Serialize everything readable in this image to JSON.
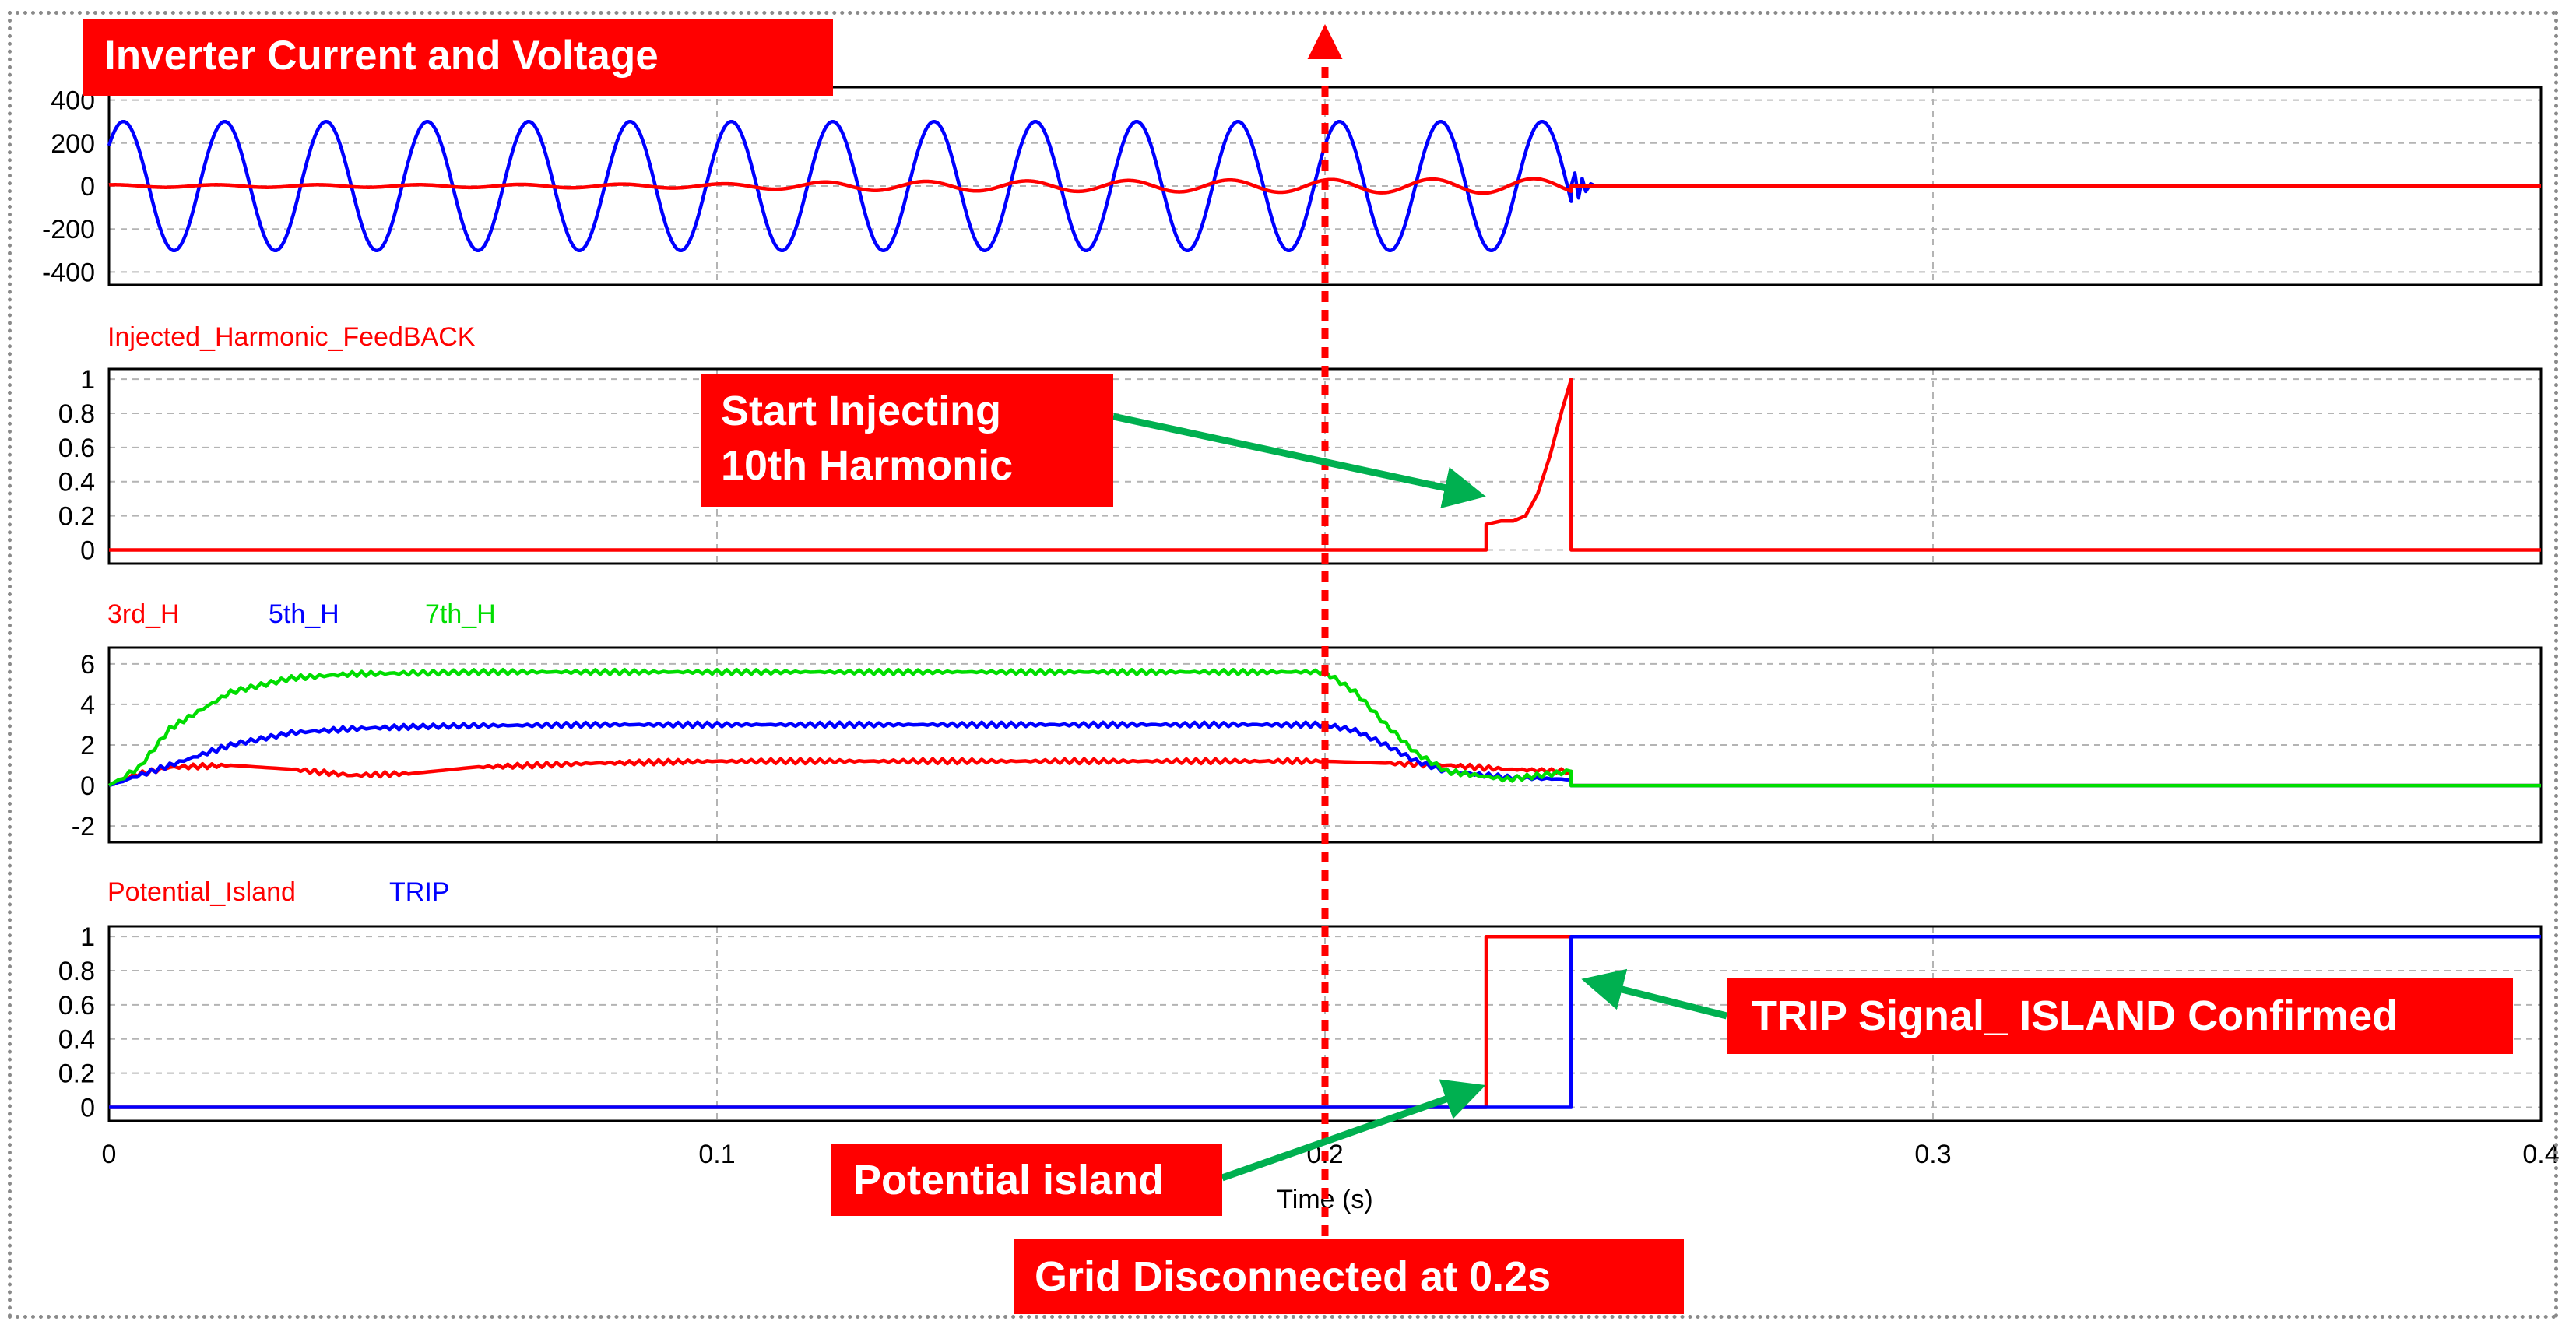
{
  "chart_data": [
    {
      "type": "line",
      "title": "Inverter Current and Voltage",
      "yticks": [
        "400",
        "200",
        "0",
        "-200",
        "-400"
      ],
      "ylim": [
        -460,
        460
      ],
      "xlim": [
        0,
        0.4
      ],
      "grid": true,
      "series": [
        {
          "description_color": "blue",
          "kind": "sine",
          "amplitude": 300,
          "frequency_hz": 60,
          "phase_offset_s": 0.0018,
          "end_t": 0.2405,
          "after_value": 0
        },
        {
          "description_color": "red",
          "kind": "sine-envelope",
          "envelope": [
            [
              0,
              6
            ],
            [
              0.05,
              6
            ],
            [
              0.1,
              10
            ],
            [
              0.12,
              20
            ],
            [
              0.2,
              30
            ],
            [
              0.24,
              35
            ]
          ],
          "frequency_hz": 60,
          "end_t": 0.2405,
          "after_value": 0
        }
      ]
    },
    {
      "type": "line",
      "title": "",
      "yticks": [
        "1",
        "0.8",
        "0.6",
        "0.4",
        "0.2",
        "0"
      ],
      "ylim": [
        -0.08,
        1.06
      ],
      "xlim": [
        0,
        0.4
      ],
      "grid": true,
      "series": [
        {
          "name": "Injected_Harmonic_FeedBACK",
          "x": [
            0,
            0.2265,
            0.2265,
            0.229,
            0.231,
            0.233,
            0.235,
            0.237,
            0.239,
            0.2405,
            0.2405,
            0.4
          ],
          "y": [
            0,
            0,
            0.15,
            0.17,
            0.17,
            0.2,
            0.33,
            0.55,
            0.82,
            1.0,
            0,
            0
          ]
        }
      ]
    },
    {
      "type": "line",
      "title": "",
      "yticks": [
        "6",
        "4",
        "2",
        "0",
        "-2"
      ],
      "ylim": [
        -2.8,
        6.8
      ],
      "xlim": [
        0,
        0.4
      ],
      "grid": true,
      "series": [
        {
          "name": "3rd_H",
          "x": [
            0,
            0.004,
            0.01,
            0.02,
            0.03,
            0.04,
            0.05,
            0.06,
            0.08,
            0.1,
            0.15,
            0.19,
            0.2,
            0.21,
            0.22,
            0.23,
            0.2405,
            0.2405,
            0.4
          ],
          "y": [
            0,
            0.5,
            0.9,
            1.0,
            0.8,
            0.5,
            0.6,
            0.9,
            1.1,
            1.2,
            1.2,
            1.2,
            1.2,
            1.1,
            1.0,
            0.8,
            0.7,
            0,
            0
          ]
        },
        {
          "name": "5th_H",
          "x": [
            0,
            0.01,
            0.02,
            0.03,
            0.04,
            0.05,
            0.06,
            0.08,
            0.1,
            0.15,
            0.2,
            0.205,
            0.21,
            0.215,
            0.22,
            0.23,
            0.2405,
            0.2405,
            0.4
          ],
          "y": [
            0,
            1.0,
            2.0,
            2.6,
            2.8,
            2.9,
            2.95,
            3.0,
            3.0,
            3.0,
            3.0,
            2.7,
            2.0,
            1.2,
            0.7,
            0.4,
            0.3,
            0,
            0
          ]
        },
        {
          "name": "7th_H",
          "x": [
            0,
            0.005,
            0.01,
            0.02,
            0.03,
            0.04,
            0.05,
            0.06,
            0.08,
            0.1,
            0.15,
            0.2,
            0.205,
            0.21,
            0.215,
            0.22,
            0.23,
            0.2405,
            0.2405,
            0.4
          ],
          "y": [
            0,
            0.9,
            2.8,
            4.6,
            5.3,
            5.5,
            5.55,
            5.6,
            5.6,
            5.6,
            5.6,
            5.6,
            4.6,
            3.0,
            1.6,
            0.7,
            0.3,
            0.7,
            0,
            0
          ]
        }
      ]
    },
    {
      "type": "line",
      "title": "",
      "yticks": [
        "1",
        "0.8",
        "0.6",
        "0.4",
        "0.2",
        "0"
      ],
      "ylim": [
        -0.08,
        1.06
      ],
      "xlim": [
        0,
        0.4
      ],
      "xticks": [
        "0",
        "0.1",
        "0.2",
        "0.3",
        "0.4"
      ],
      "xlabel": "Time (s)",
      "grid": true,
      "series": [
        {
          "name": "Potential_Island",
          "x": [
            0,
            0.2265,
            0.2265,
            0.2405,
            0.2405
          ],
          "y": [
            0,
            0,
            1,
            1,
            0
          ]
        },
        {
          "name": "TRIP",
          "x": [
            0,
            0.2405,
            0.2405,
            0.4
          ],
          "y": [
            0,
            0,
            1,
            1
          ]
        }
      ]
    }
  ],
  "legends": {
    "panel2": [
      "Injected_Harmonic_FeedBACK"
    ],
    "panel3": [
      "3rd_H",
      "5th_H",
      "7th_H"
    ],
    "panel4": [
      "Potential_Island",
      "TRIP"
    ]
  },
  "annotations": {
    "title": "Inverter Current and Voltage",
    "inject": "Start Injecting\n10th Harmonic",
    "trip": "TRIP Signal_ ISLAND Confirmed",
    "potential": "Potential island",
    "grid": "Grid Disconnected at 0.2s",
    "marker_x": 0.2
  },
  "colors": {
    "red": "#ff0000",
    "blue": "#0000ff",
    "green": "#00dd00",
    "arrow": "#00b050",
    "grid": "#b4b4b4",
    "axis": "#000000"
  }
}
